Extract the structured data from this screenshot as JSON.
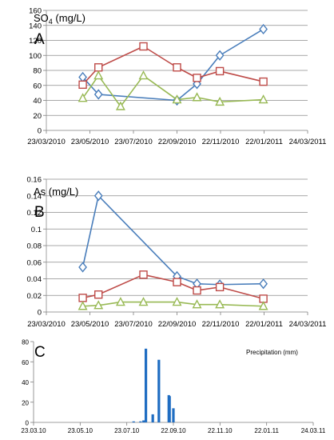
{
  "chart_data": [
    {
      "type": "line",
      "letter": "A",
      "title": "SO4 (mg/L)",
      "title_main": "SO",
      "title_sub": "4",
      "title_rest": " (mg/L)",
      "ylim": [
        0,
        160
      ],
      "yticks": [
        0,
        20,
        40,
        60,
        80,
        100,
        120,
        140,
        160
      ],
      "xticks": [
        "23/03/2010",
        "23/05/2010",
        "23/07/2010",
        "22/09/2010",
        "22/11/2010",
        "22/01/2011",
        "24/03/2011"
      ],
      "grid": true,
      "series": [
        {
          "marker": "diamond",
          "color": "#4a7ebb",
          "x": [
            "2010-05-13",
            "2010-06-04",
            "2010-09-22",
            "2010-10-20",
            "2010-11-21",
            "2011-01-21"
          ],
          "values": [
            71,
            48,
            40,
            62,
            100,
            135
          ]
        },
        {
          "marker": "square",
          "color": "#be4b48",
          "x": [
            "2010-05-13",
            "2010-06-04",
            "2010-08-06",
            "2010-09-22",
            "2010-10-20",
            "2010-11-21",
            "2011-01-21"
          ],
          "values": [
            61,
            84,
            112,
            84,
            70,
            79,
            65
          ]
        },
        {
          "marker": "triangle",
          "color": "#98b954",
          "x": [
            "2010-05-13",
            "2010-06-04",
            "2010-07-05",
            "2010-08-06",
            "2010-09-22",
            "2010-10-20",
            "2010-11-21",
            "2011-01-21"
          ],
          "values": [
            43,
            73,
            32,
            73,
            41,
            44,
            38,
            41
          ]
        }
      ]
    },
    {
      "type": "line",
      "letter": "B",
      "title": "As (mg/L)",
      "ylim": [
        0,
        0.16
      ],
      "yticks": [
        0,
        0.02,
        0.04,
        0.06,
        0.08,
        0.1,
        0.12,
        0.14,
        0.16
      ],
      "xticks": [
        "23/03/2010",
        "23/05/2010",
        "23/07/2010",
        "22/09/2010",
        "22/11/2010",
        "22/01/2011",
        "24/03/2011"
      ],
      "grid": true,
      "series": [
        {
          "marker": "diamond",
          "color": "#4a7ebb",
          "x": [
            "2010-05-13",
            "2010-06-04",
            "2010-09-22",
            "2010-10-20",
            "2010-11-21",
            "2011-01-21"
          ],
          "values": [
            0.054,
            0.14,
            0.043,
            0.034,
            0.033,
            0.034
          ]
        },
        {
          "marker": "square",
          "color": "#be4b48",
          "x": [
            "2010-05-13",
            "2010-06-04",
            "2010-08-06",
            "2010-09-22",
            "2010-10-20",
            "2010-11-21",
            "2011-01-21"
          ],
          "values": [
            0.017,
            0.021,
            0.045,
            0.036,
            0.026,
            0.03,
            0.016
          ]
        },
        {
          "marker": "triangle",
          "color": "#98b954",
          "x": [
            "2010-05-13",
            "2010-06-04",
            "2010-07-05",
            "2010-08-06",
            "2010-09-22",
            "2010-10-20",
            "2010-11-21",
            "2011-01-21"
          ],
          "values": [
            0.007,
            0.008,
            0.012,
            0.012,
            0.012,
            0.009,
            0.009,
            0.007
          ]
        }
      ]
    },
    {
      "type": "bar",
      "letter": "C",
      "title": "Precipitation (mm)",
      "ylim": [
        0,
        80
      ],
      "yticks": [
        0,
        20,
        40,
        60,
        80
      ],
      "xticks": [
        "23.03.10",
        "23.05.10",
        "23.07.10",
        "22.09.10",
        "22.11.10",
        "22.01.11",
        "24.03.11"
      ],
      "grid": false,
      "color": "#1f6dc2",
      "x": [
        "2010-08-01",
        "2010-08-10",
        "2010-08-14",
        "2010-08-17",
        "2010-08-26",
        "2010-09-03",
        "2010-09-16",
        "2010-09-17",
        "2010-09-22"
      ],
      "values": [
        1,
        1,
        2,
        73,
        8,
        62,
        27,
        26,
        14
      ]
    }
  ]
}
